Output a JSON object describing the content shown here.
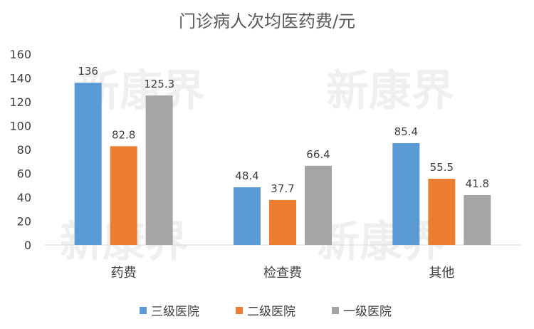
{
  "watermark": {
    "text": "新康界"
  },
  "chart_data": {
    "type": "bar",
    "title": "门诊病人次均医药费/元",
    "categories": [
      "药费",
      "检查费",
      "其他"
    ],
    "series": [
      {
        "name": "三级医院",
        "color": "#5B9BD5",
        "values": [
          136,
          48.4,
          85.4
        ]
      },
      {
        "name": "二级医院",
        "color": "#ED7D31",
        "values": [
          82.8,
          37.7,
          55.5
        ]
      },
      {
        "name": "一级医院",
        "color": "#A5A5A5",
        "values": [
          125.3,
          66.4,
          41.8
        ]
      }
    ],
    "ylim": [
      0,
      160
    ],
    "yticks": [
      0,
      20,
      40,
      60,
      80,
      100,
      120,
      140,
      160
    ],
    "grid": false,
    "legend_position": "bottom"
  }
}
